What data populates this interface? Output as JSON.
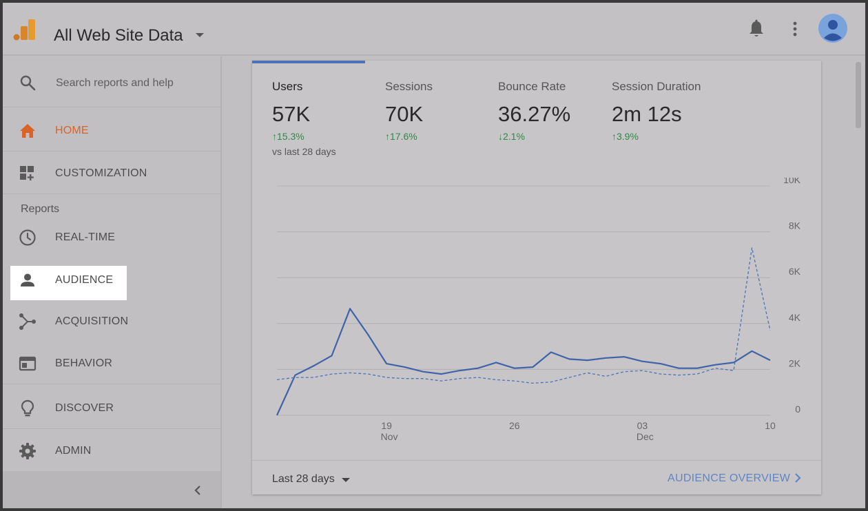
{
  "header": {
    "property_title": "All Web Site Data",
    "icons": [
      "analytics-logo",
      "caret-down-icon",
      "bell-icon",
      "more-vert-icon",
      "avatar-icon"
    ]
  },
  "sidebar": {
    "search_placeholder": "Search reports and help",
    "items": [
      {
        "label": "HOME",
        "icon": "home-icon",
        "active": true
      },
      {
        "label": "CUSTOMIZATION",
        "icon": "dashboard-icon"
      },
      {
        "label": "REAL-TIME",
        "icon": "clock-icon"
      },
      {
        "label": "AUDIENCE",
        "icon": "person-icon",
        "highlighted": true
      },
      {
        "label": "ACQUISITION",
        "icon": "acquisition-icon"
      },
      {
        "label": "BEHAVIOR",
        "icon": "behavior-icon"
      },
      {
        "label": "DISCOVER",
        "icon": "lightbulb-icon"
      },
      {
        "label": "ADMIN",
        "icon": "gear-icon"
      }
    ],
    "reports_label": "Reports"
  },
  "metrics": [
    {
      "label": "Users",
      "value": "57K",
      "change": "15.3%",
      "direction": "up",
      "compare": "vs last 28 days"
    },
    {
      "label": "Sessions",
      "value": "70K",
      "change": "17.6%",
      "direction": "up"
    },
    {
      "label": "Bounce Rate",
      "value": "36.27%",
      "change": "2.1%",
      "direction": "down"
    },
    {
      "label": "Session Duration",
      "value": "2m 12s",
      "change": "3.9%",
      "direction": "up"
    }
  ],
  "chart_data": {
    "type": "line",
    "y_tick_labels": [
      "0",
      "2K",
      "4K",
      "6K",
      "8K",
      "10K"
    ],
    "ylim": [
      0,
      10000
    ],
    "grid": true,
    "x_tick_labels": [
      {
        "day": "19",
        "month": "Nov"
      },
      {
        "day": "26",
        "month": ""
      },
      {
        "day": "03",
        "month": "Dec"
      },
      {
        "day": "10",
        "month": ""
      }
    ],
    "x_tick_index": [
      6,
      13,
      20,
      27
    ],
    "series": [
      {
        "style": "solid",
        "color": "#3f63a8",
        "values": [
          0,
          1750,
          2150,
          2600,
          4650,
          3500,
          2250,
          2100,
          1900,
          1800,
          1950,
          2050,
          2300,
          2050,
          2100,
          2750,
          2450,
          2400,
          2500,
          2550,
          2350,
          2250,
          2050,
          2050,
          2200,
          2300,
          2800,
          2400
        ]
      },
      {
        "style": "dashed",
        "color": "#4a73b8",
        "values": [
          1550,
          1650,
          1650,
          1800,
          1850,
          1800,
          1650,
          1600,
          1600,
          1500,
          1600,
          1650,
          1550,
          1500,
          1400,
          1450,
          1650,
          1850,
          1700,
          1900,
          1950,
          1800,
          1750,
          1800,
          2050,
          1950,
          7300,
          3700
        ]
      }
    ]
  },
  "footer": {
    "range_label": "Last 28 days",
    "overview_link": "AUDIENCE OVERVIEW"
  }
}
